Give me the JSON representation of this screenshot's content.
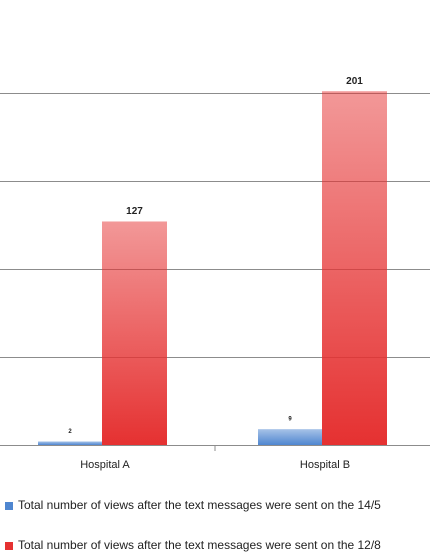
{
  "chart_data": {
    "type": "bar",
    "categories": [
      "Hospital A",
      "Hospital B"
    ],
    "series": [
      {
        "name": "Total number of views after the text messages were sent on the 14/5",
        "color": "#4f86d0",
        "values": [
          2,
          9
        ]
      },
      {
        "name": "Total number of views after the text messages were sent on the 12/8",
        "color": "#e53131",
        "values": [
          127,
          201
        ]
      }
    ],
    "ylim": [
      0,
      250
    ],
    "yticks": [
      0,
      50,
      100,
      150,
      200
    ],
    "grid": true
  }
}
